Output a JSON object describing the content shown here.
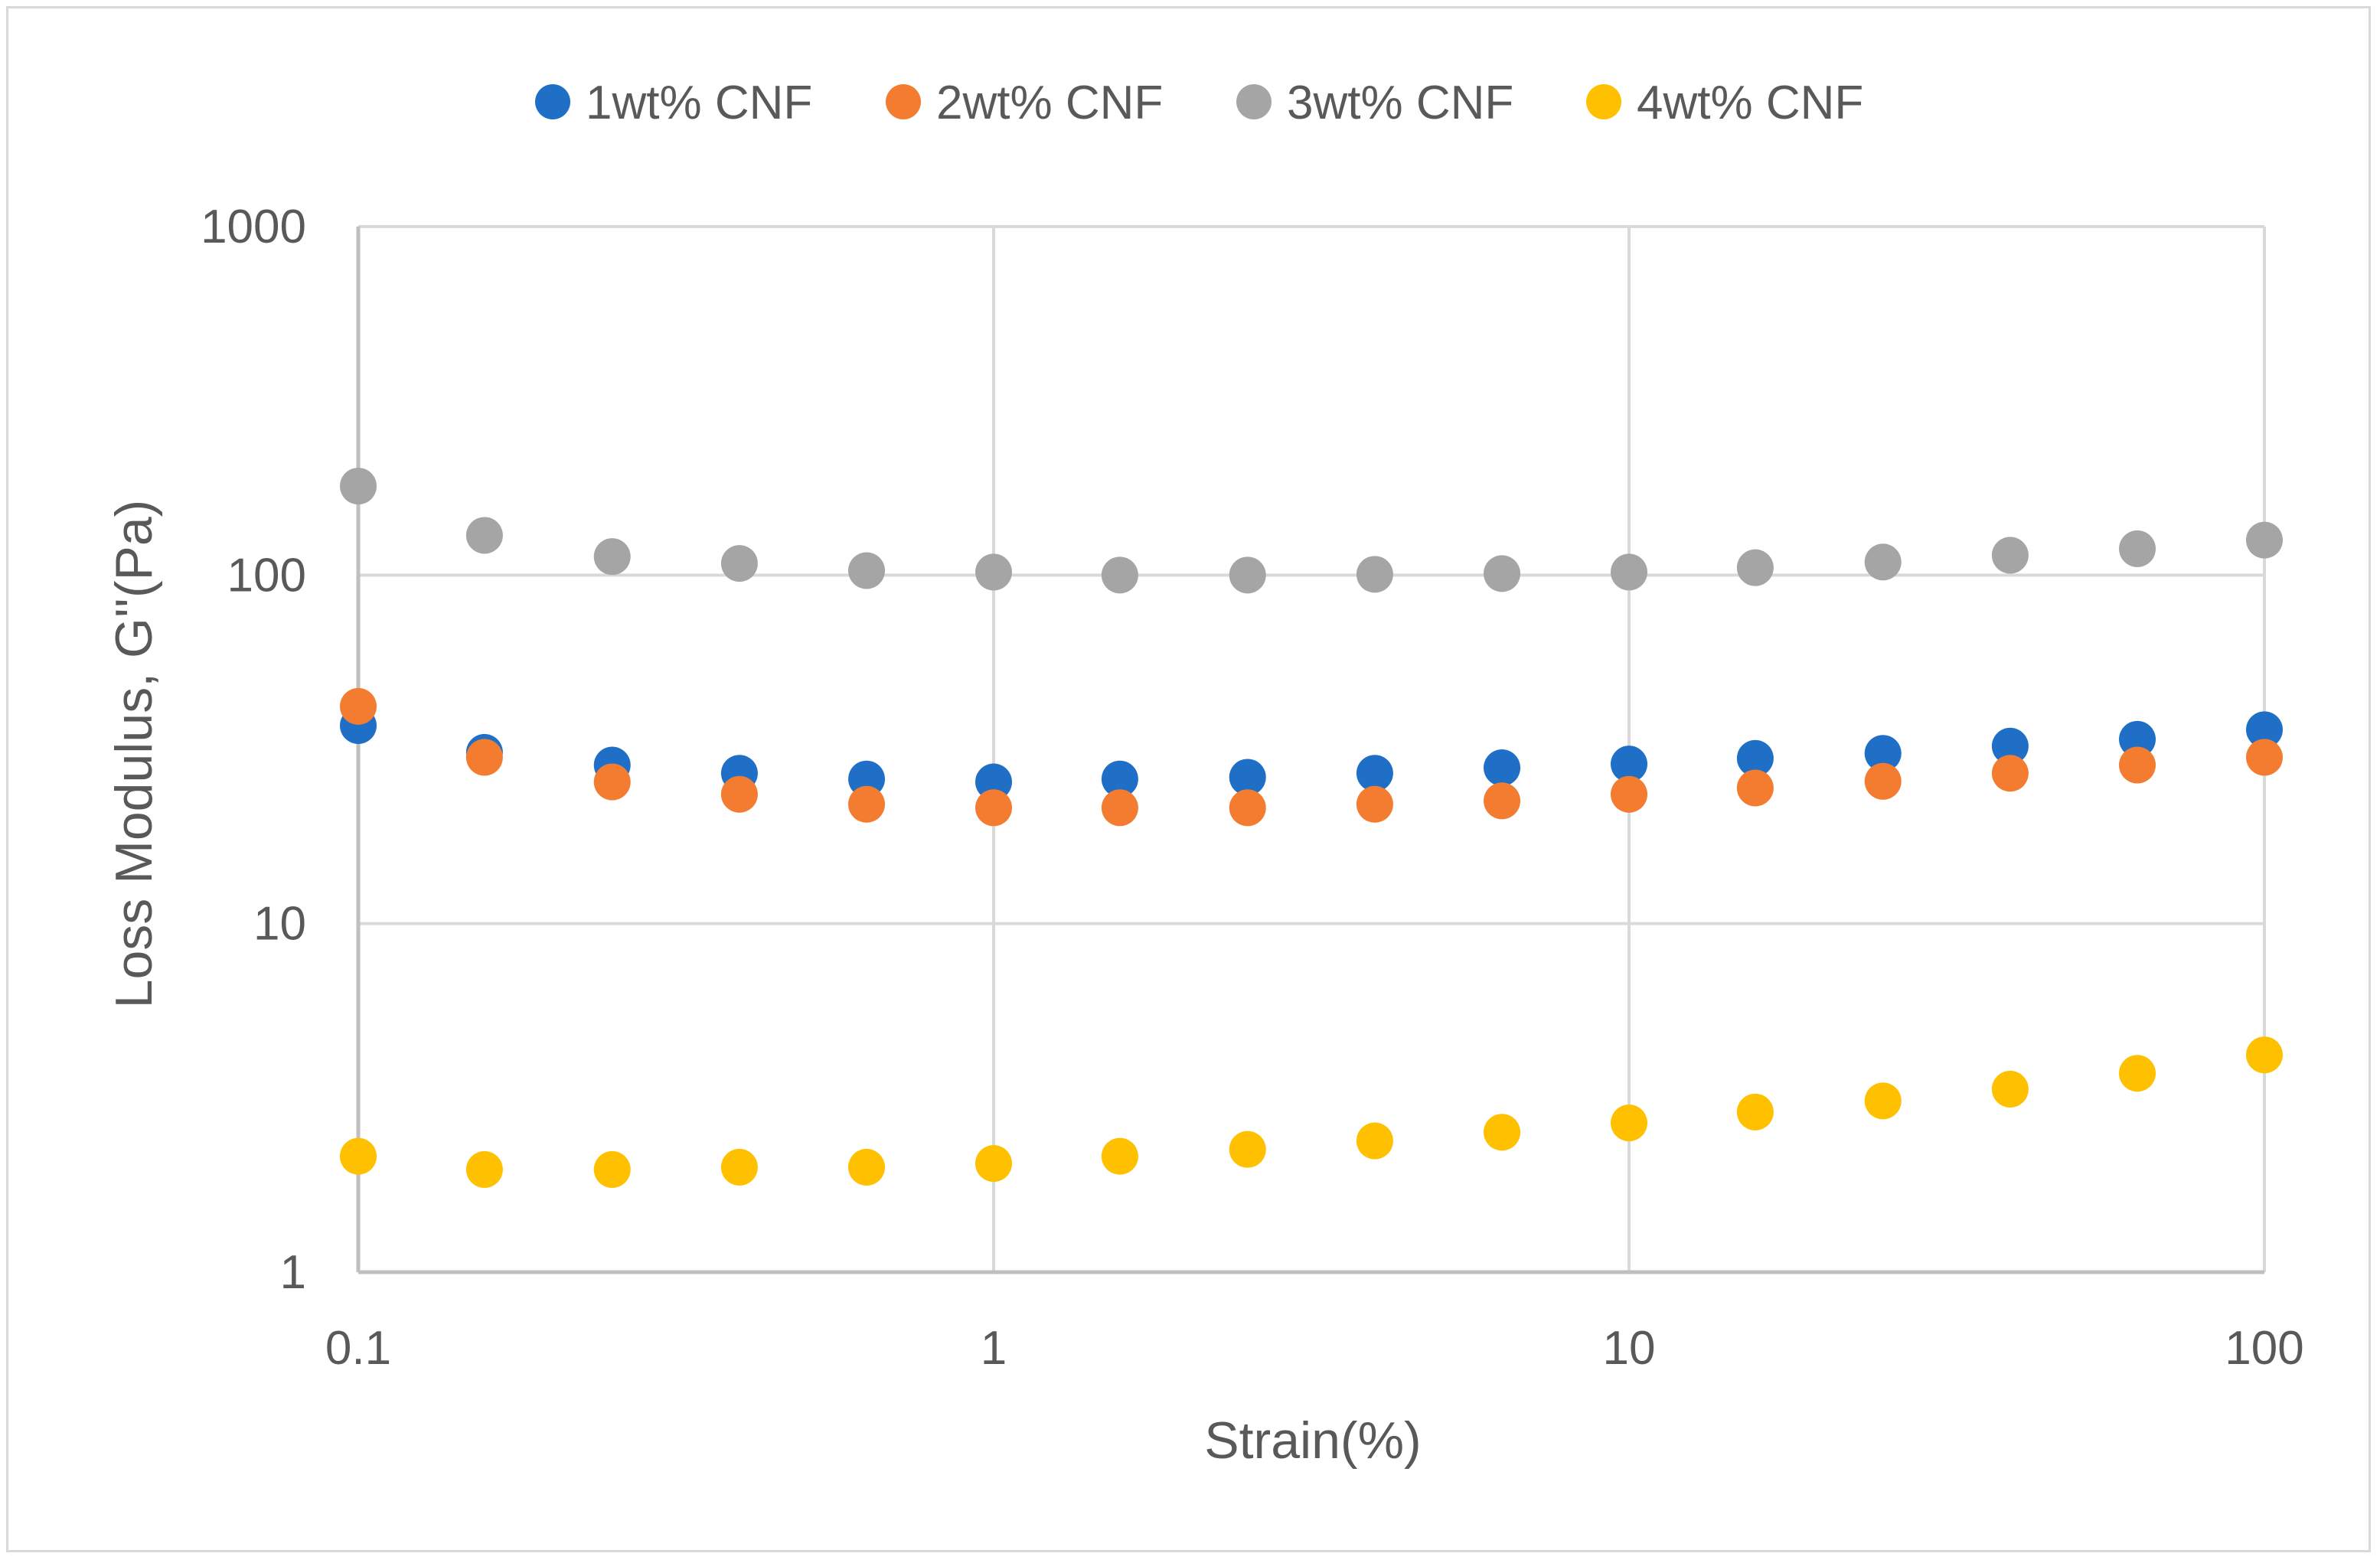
{
  "chart_data": {
    "type": "scatter",
    "title": "",
    "xlabel": "Strain(%)",
    "ylabel": "Loss Modulus, G''(Pa)",
    "x_scale": "log",
    "y_scale": "log",
    "xlim": [
      0.1,
      100
    ],
    "ylim": [
      1,
      1000
    ],
    "x_ticks": [
      0.1,
      1,
      10,
      100
    ],
    "x_tick_labels": [
      "0.1",
      "1",
      "10",
      "100"
    ],
    "y_ticks": [
      1,
      10,
      100,
      1000
    ],
    "y_tick_labels": [
      "1",
      "10",
      "100",
      "1000"
    ],
    "grid": true,
    "legend_position": "top",
    "x": [
      0.1,
      0.158,
      0.251,
      0.398,
      0.631,
      1,
      1.58,
      2.51,
      3.98,
      6.31,
      10,
      15.8,
      25.1,
      39.8,
      63.1,
      100
    ],
    "series": [
      {
        "name": "1wt% CNF",
        "color": "#1f6fc6",
        "values": [
          37,
          31,
          28.5,
          27,
          26,
          25.5,
          26,
          26.3,
          27,
          28,
          28.7,
          29.8,
          30.8,
          32.3,
          33.8,
          36
        ]
      },
      {
        "name": "2wt% CNF",
        "color": "#f47c30",
        "values": [
          42,
          30,
          25.5,
          23.5,
          22,
          21.5,
          21.5,
          21.5,
          22,
          22.5,
          23.5,
          24.5,
          25.6,
          27,
          28.5,
          30
        ]
      },
      {
        "name": "3wt% CNF",
        "color": "#a5a5a5",
        "values": [
          180,
          130,
          113,
          108,
          103,
          102,
          100,
          100,
          100.5,
          101,
          102,
          105,
          109,
          114,
          119,
          126
        ]
      },
      {
        "name": "4wt% CNF",
        "color": "#ffc000",
        "values": [
          2.15,
          1.97,
          1.97,
          2.0,
          2.0,
          2.05,
          2.15,
          2.25,
          2.38,
          2.52,
          2.68,
          2.88,
          3.1,
          3.35,
          3.72,
          4.2
        ]
      }
    ]
  }
}
